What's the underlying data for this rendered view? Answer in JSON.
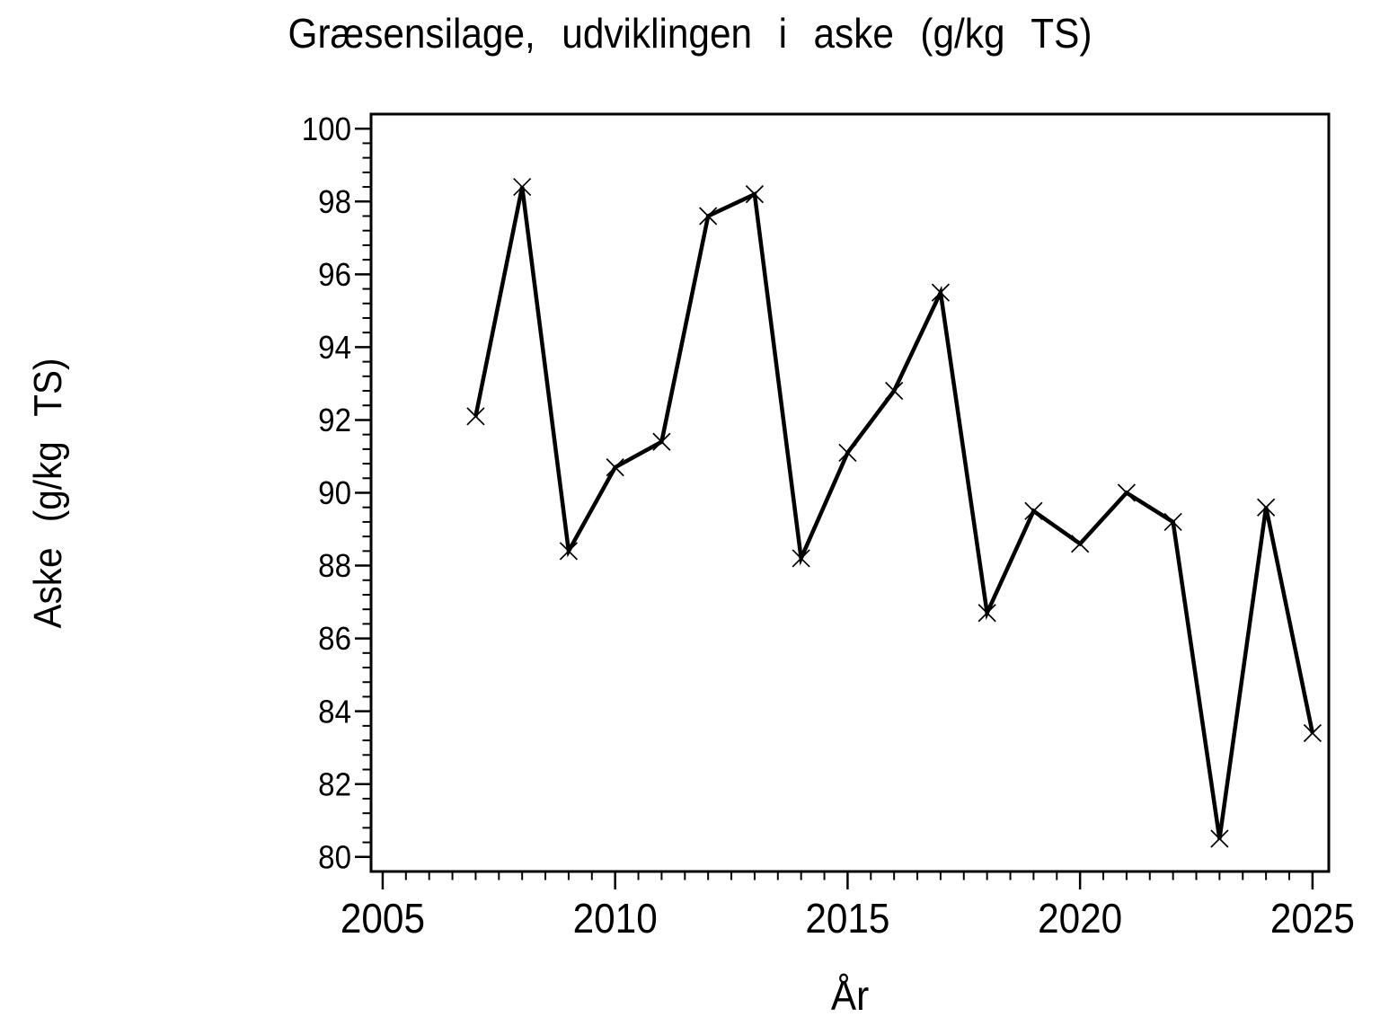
{
  "chart_data": {
    "type": "line",
    "title": "Græsensilage, udviklingen i aske (g/kg TS)",
    "xlabel": "År",
    "ylabel": "Aske (g/kg TS)",
    "series_name": "Aske",
    "x": [
      2007,
      2008,
      2009,
      2010,
      2011,
      2012,
      2013,
      2014,
      2015,
      2016,
      2017,
      2018,
      2019,
      2020,
      2021,
      2022,
      2023,
      2024,
      2025
    ],
    "values": [
      92.1,
      98.4,
      88.4,
      90.7,
      91.4,
      97.6,
      98.2,
      88.2,
      91.1,
      92.8,
      95.5,
      86.7,
      89.5,
      88.6,
      90.0,
      89.2,
      80.5,
      89.6,
      83.4
    ],
    "xlim": [
      2004.75,
      2025.35
    ],
    "ylim": [
      79.6,
      100.4
    ],
    "x_major_ticks": [
      2005,
      2010,
      2015,
      2020,
      2025
    ],
    "x_minor_step": 0.5,
    "x_minor_range": [
      2005,
      2025
    ],
    "y_major_ticks": [
      80,
      82,
      84,
      86,
      88,
      90,
      92,
      94,
      96,
      98,
      100
    ],
    "y_minor_step": 0.4,
    "y_minor_range": [
      80,
      100
    ],
    "marker": "x",
    "grid": false,
    "legend": "none",
    "line_color": "#000000",
    "background_color": "#ffffff"
  }
}
